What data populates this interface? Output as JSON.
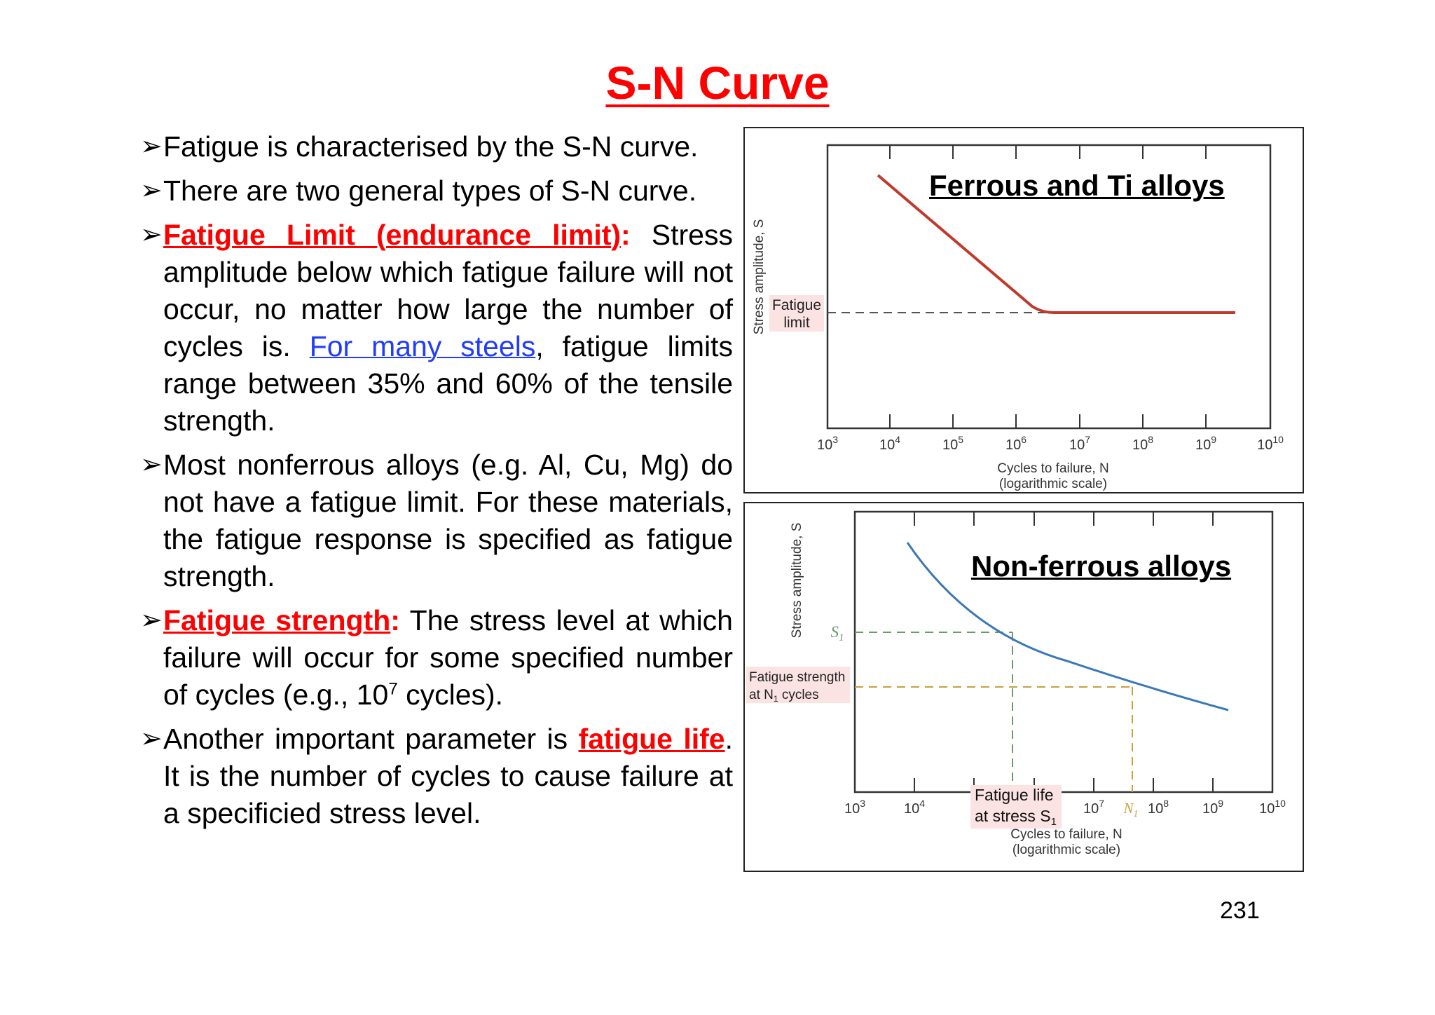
{
  "title": "S-N Curve",
  "bullets": {
    "b1": "Fatigue is characterised by the S-N curve.",
    "b2": "There are two general types of S-N curve.",
    "b3_term": "Fatigue Limit (endurance limit)",
    "b3_colon": ":",
    "b3_text1": " Stress amplitude below which fatigue failure will not occur, no matter how large the number of cycles is. ",
    "b3_link": "For many steels",
    "b3_text2": ", fatigue limits range between 35% and 60% of the tensile  strength.",
    "b4": "Most nonferrous alloys (e.g. Al, Cu, Mg) do not have a fatigue limit. For these materials, the fatigue response is specified as fatigue strength.",
    "b5_term": "Fatigue  strength",
    "b5_colon": ":",
    "b5_text1": " The stress level at which failure will occur for some specified number of cycles (e.g., 10",
    "b5_sup": "7",
    "b5_text2": " cycles).",
    "b6_text1": "Another important parameter is ",
    "b6_term": "fatigue life",
    "b6_text2": ". It is the number of cycles to cause failure at a specificied stress level."
  },
  "chart1": {
    "title": "Ferrous and Ti alloys",
    "ylabel": "Stress amplitude, S",
    "xlabel": "Cycles to failure, N",
    "xlabel2": "(logarithmic scale)",
    "annotation_line1": "Fatigue",
    "annotation_line2": "limit",
    "curve_color": "#c0392b"
  },
  "chart2": {
    "title": "Non-ferrous alloys",
    "ylabel": "Stress amplitude, S",
    "xlabel": "Cycles to failure, N",
    "xlabel2": "(logarithmic scale)",
    "s1_label": "S",
    "s1_sub": "1",
    "n1_label": "N",
    "n1_sub": "1",
    "ann_strength_line1": "Fatigue strength",
    "ann_strength_line2": "at N",
    "ann_strength_sub": "1",
    "ann_strength_line2b": " cycles",
    "ann_life_line1": "Fatigue life",
    "ann_life_line2": "at stress S",
    "ann_life_sub": "1",
    "curve_color": "#3a78b8"
  },
  "page_number": "231"
}
